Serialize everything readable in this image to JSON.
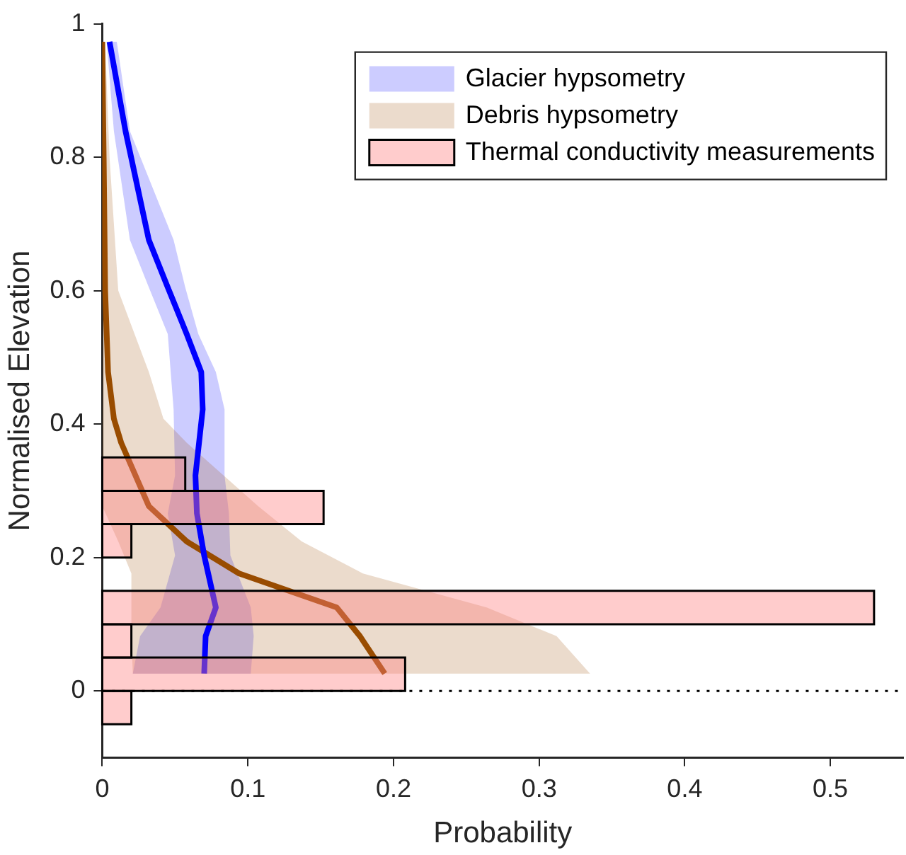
{
  "chart_data": {
    "type": "line",
    "orientation": "horizontal",
    "xlabel": "Probability",
    "ylabel": "Normalised Elevation",
    "xlim": [
      0,
      0.55
    ],
    "xticks": [
      0,
      0.1,
      0.2,
      0.3,
      0.4,
      0.5
    ],
    "ylim": [
      -0.1,
      1
    ],
    "yticks": [
      0,
      0.2,
      0.4,
      0.6,
      0.8,
      1
    ],
    "grid": false,
    "legend": "top right",
    "marker": "none",
    "line_style": "solid",
    "ref_lines": [
      {
        "axis": "y",
        "value": 0,
        "color": "#000000",
        "line_style": "dotted"
      }
    ],
    "series": [
      {
        "name": "Glacier hypsometry",
        "color": "#0000ff",
        "x": [
          0.973,
          0.839,
          0.676,
          0.605,
          0.535,
          0.478,
          0.422,
          0.323,
          0.266,
          0.203,
          0.125,
          0.082,
          0.026
        ],
        "values": [
          0.005,
          0.016,
          0.032,
          0.045,
          0.058,
          0.068,
          0.069,
          0.064,
          0.065,
          0.07,
          0.078,
          0.071,
          0.07
        ],
        "lower": [
          0.003,
          0.008,
          0.019,
          0.032,
          0.045,
          0.047,
          0.049,
          0.05,
          0.045,
          0.05,
          0.04,
          0.026,
          0.021
        ],
        "upper": [
          0.01,
          0.019,
          0.049,
          0.057,
          0.066,
          0.078,
          0.084,
          0.084,
          0.087,
          0.088,
          0.102,
          0.104,
          0.102
        ]
      },
      {
        "name": "Debris hypsometry",
        "color": "#994c00",
        "x": [
          0.973,
          0.8,
          0.6,
          0.478,
          0.408,
          0.372,
          0.277,
          0.224,
          0.176,
          0.125,
          0.082,
          0.026
        ],
        "values": [
          0,
          0.001,
          0.002,
          0.004,
          0.008,
          0.013,
          0.032,
          0.058,
          0.094,
          0.161,
          0.177,
          0.194
        ],
        "lower": [
          0,
          0,
          0,
          0,
          0,
          0,
          0,
          0.011,
          0.02,
          0.02,
          0.02,
          0.021
        ],
        "upper": [
          0.002,
          0.005,
          0.011,
          0.032,
          0.042,
          0.058,
          0.107,
          0.137,
          0.179,
          0.264,
          0.312,
          0.335
        ]
      },
      {
        "name": "Thermal conductivity measurements",
        "type": "histogram",
        "color": "#ffcccc",
        "bins": [
          -0.05,
          0,
          0.05,
          0.1,
          0.15,
          0.2,
          0.25,
          0.3,
          0.35
        ],
        "values": [
          0.02,
          0.208,
          0.02,
          0.53,
          0,
          0.02,
          0.152,
          0.057
        ]
      }
    ]
  }
}
